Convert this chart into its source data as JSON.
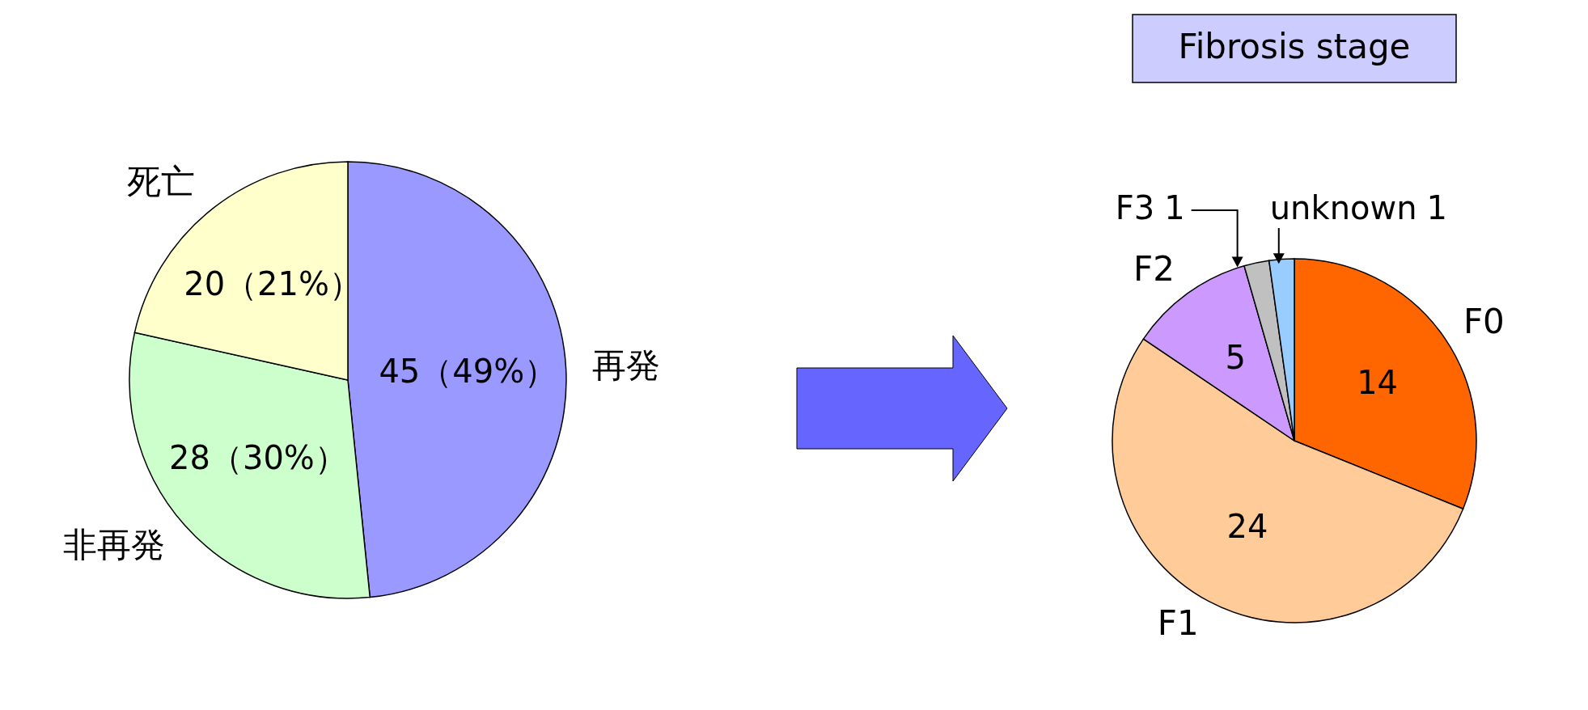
{
  "chart_data": [
    {
      "type": "pie",
      "categories": [
        "再発",
        "非再発",
        "死亡"
      ],
      "values": [
        45,
        28,
        20
      ],
      "colors": [
        "#9999ff",
        "#ccffcc",
        "#ffffcc"
      ],
      "value_labels": [
        "45（49%）",
        "28（30%）",
        "20（21%）"
      ]
    },
    {
      "type": "pie",
      "title": "Fibrosis stage",
      "categories": [
        "F0",
        "F1",
        "F2",
        "F3",
        "unknown"
      ],
      "values": [
        14,
        24,
        5,
        1,
        1
      ],
      "colors": [
        "#ff6600",
        "#ffcc99",
        "#cc99ff",
        "#c0c0c0",
        "#99ccff"
      ],
      "data_labels": true
    }
  ]
}
